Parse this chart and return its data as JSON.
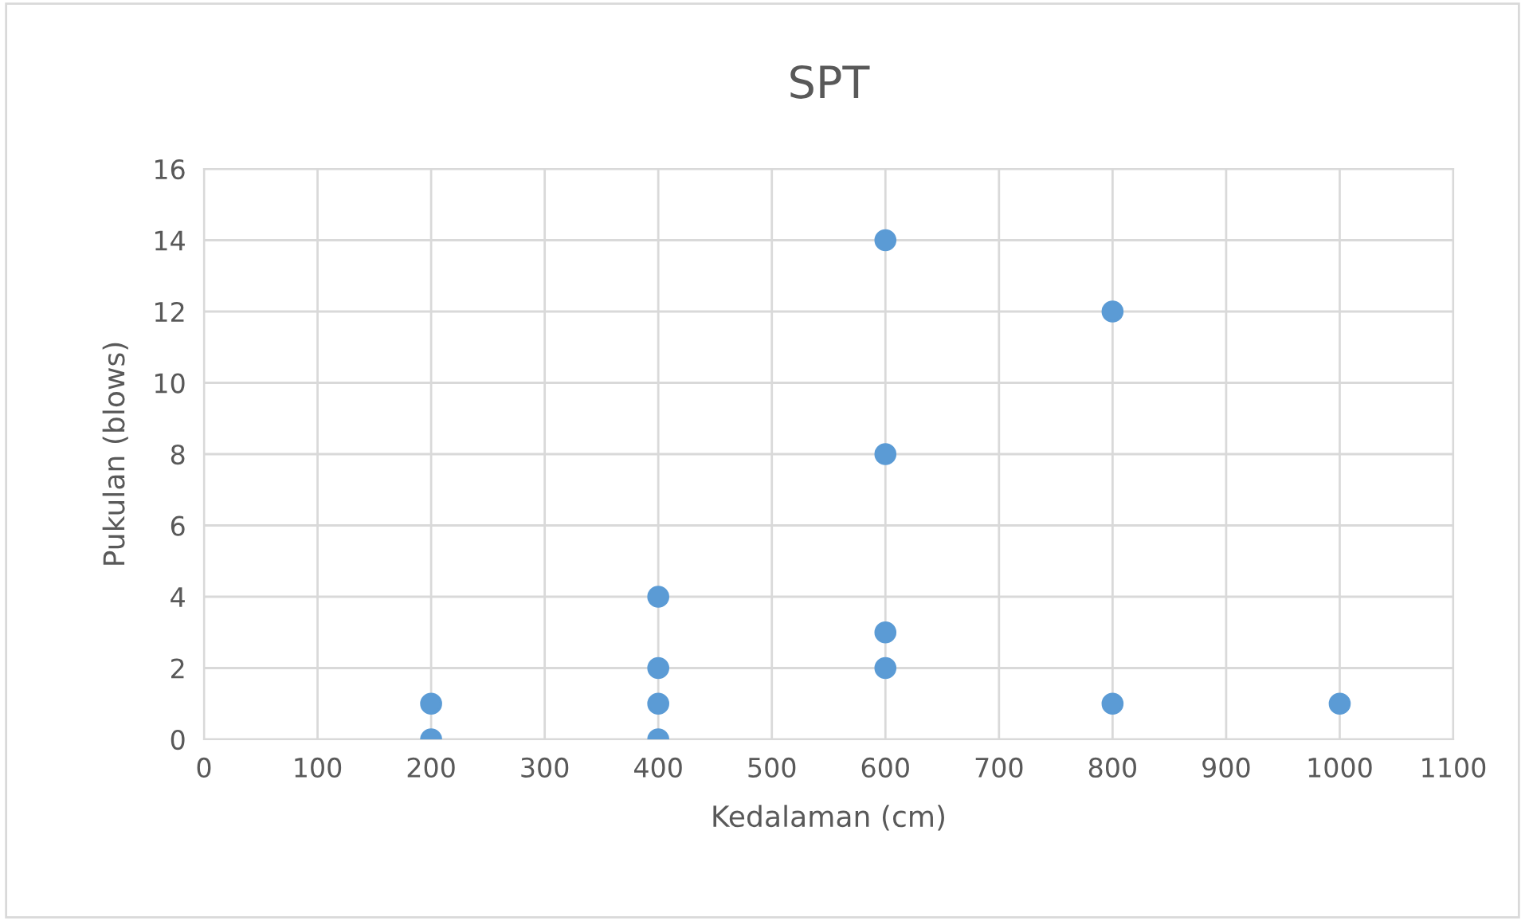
{
  "chart_data": {
    "type": "scatter",
    "title": "SPT",
    "xlabel": "Kedalaman (cm)",
    "ylabel": "Pukulan (blows)",
    "x": [
      200,
      200,
      400,
      400,
      400,
      400,
      600,
      600,
      600,
      600,
      800,
      800,
      1000
    ],
    "series": [
      {
        "color": "#5b9bd5",
        "values": [
          1,
          0,
          4,
          2,
          1,
          0,
          14,
          8,
          3,
          2,
          12,
          1,
          1
        ]
      }
    ],
    "xlim": [
      0,
      1100
    ],
    "xticks": [
      0,
      100,
      200,
      300,
      400,
      500,
      600,
      700,
      800,
      900,
      1000,
      1100
    ],
    "ylim": [
      0,
      16
    ],
    "yticks": [
      0,
      2,
      4,
      6,
      8,
      10,
      12,
      14,
      16
    ],
    "grid": true,
    "marker": "circle",
    "legend": false
  }
}
